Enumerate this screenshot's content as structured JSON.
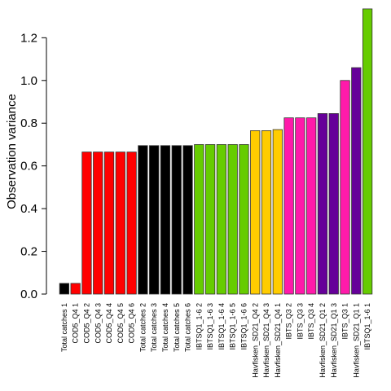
{
  "chart_data": {
    "type": "bar",
    "ylabel": "Observation variance",
    "xlabel": "",
    "ylim": [
      0,
      1.35
    ],
    "yticks": [
      "0.0",
      "0.2",
      "0.4",
      "0.6",
      "0.8",
      "1.0",
      "1.2"
    ],
    "grid": false,
    "legend": "none",
    "bar_outline_color": "#333333",
    "categories": [
      "Total catches 1",
      "COD5_Q4 1",
      "COD5_Q4 2",
      "COD5_Q4 3",
      "COD5_Q4 4",
      "COD5_Q4 5",
      "COD5_Q4 6",
      "Total catches 2",
      "Total catches 3",
      "Total catches 4",
      "Total catches 5",
      "Total catches 6",
      "IBTSQ1_1-6 2",
      "IBTSQ1_1-6 3",
      "IBTSQ1_1-6 4",
      "IBTSQ1_1-6 5",
      "IBTSQ1_1-6 6",
      "Havfisken_SD21_Q4 2",
      "Havfisken_SD21_Q4 3",
      "Havfisken_SD21_Q4 1",
      "IBTS_Q3 2",
      "IBTS_Q3 3",
      "IBTS_Q3 4",
      "Havfisken_SD21_Q1 2",
      "Havfisken_SD21_Q1 3",
      "IBTS_Q3 1",
      "Havfisken_SD21_Q1 1",
      "IBTSQ1_1-6 1"
    ],
    "values": [
      0.05,
      0.05,
      0.665,
      0.665,
      0.665,
      0.665,
      0.665,
      0.695,
      0.695,
      0.695,
      0.695,
      0.695,
      0.7,
      0.7,
      0.7,
      0.7,
      0.7,
      0.765,
      0.765,
      0.77,
      0.825,
      0.825,
      0.825,
      0.845,
      0.845,
      1.0,
      1.06,
      1.335
    ],
    "colors": [
      "#000000",
      "#ff0000",
      "#ff0000",
      "#ff0000",
      "#ff0000",
      "#ff0000",
      "#ff0000",
      "#000000",
      "#000000",
      "#000000",
      "#000000",
      "#000000",
      "#66cc00",
      "#66cc00",
      "#66cc00",
      "#66cc00",
      "#66cc00",
      "#ffcc00",
      "#ffcc00",
      "#ffcc00",
      "#ff1aaa",
      "#ff1aaa",
      "#ff1aaa",
      "#660099",
      "#660099",
      "#ff1aaa",
      "#660099",
      "#66cc00"
    ]
  }
}
